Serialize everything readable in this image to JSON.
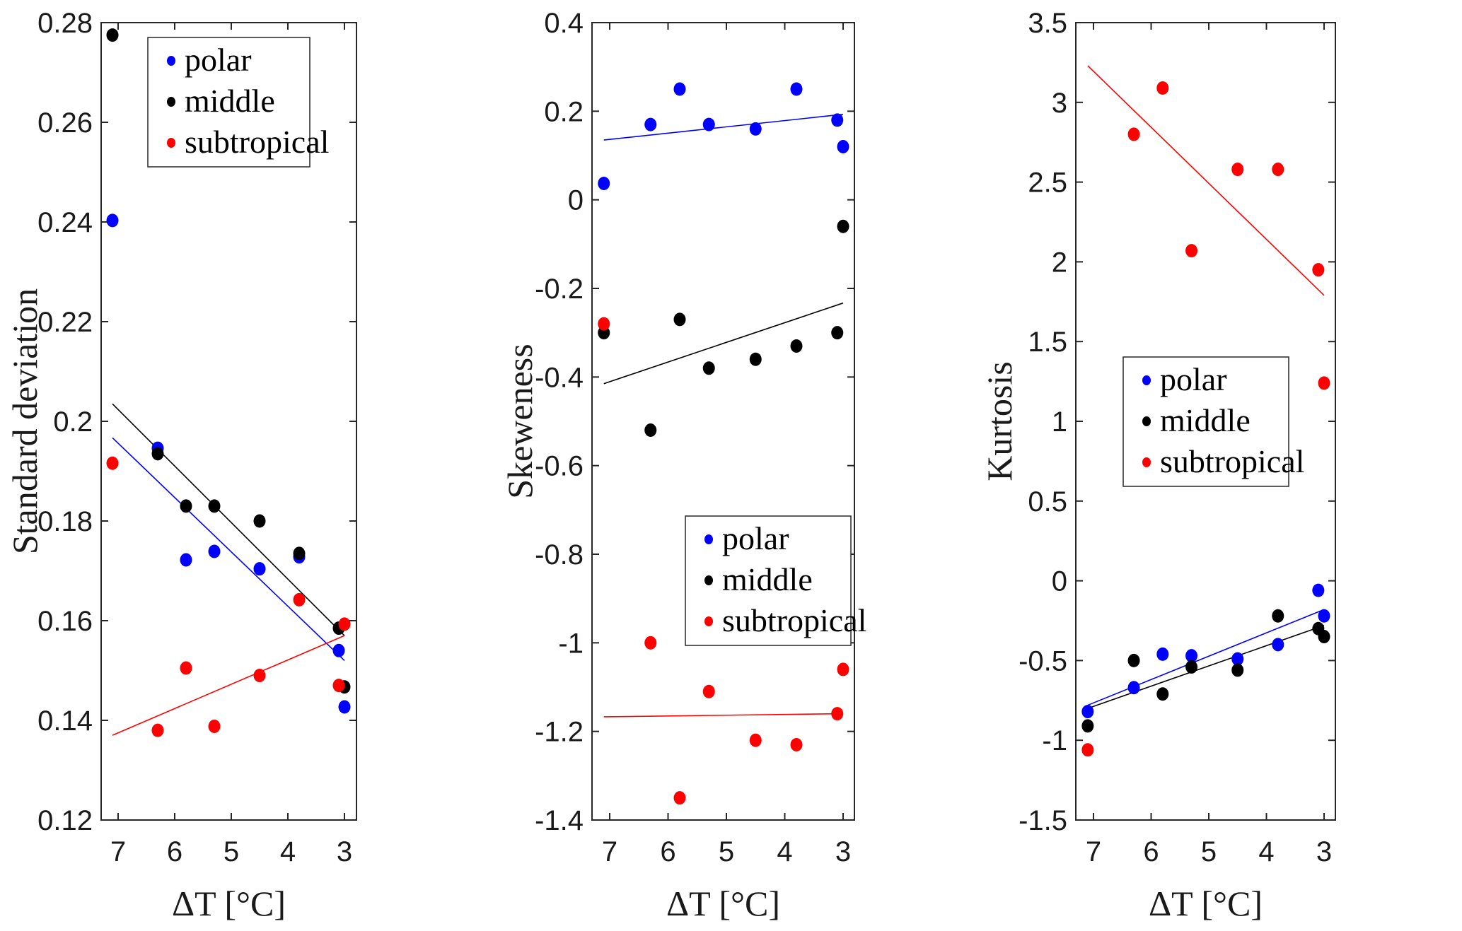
{
  "chart_data": [
    {
      "type": "scatter",
      "title": "",
      "xlabel": "ΔT [°C]",
      "ylabel": "Standard deviation",
      "xlim": [
        7.3,
        2.8
      ],
      "x_reversed": true,
      "ylim": [
        0.12,
        0.28
      ],
      "xticks": [
        7,
        6,
        5,
        4,
        3
      ],
      "xtick_labels": [
        "7",
        "6",
        "5",
        "4",
        "3"
      ],
      "yticks": [
        0.12,
        0.14,
        0.16,
        0.18,
        0.2,
        0.22,
        0.24,
        0.26,
        0.28
      ],
      "ytick_labels": [
        "0.12",
        "0.14",
        "0.16",
        "0.18",
        "0.2",
        "0.22",
        "0.24",
        "0.26",
        "0.28"
      ],
      "grid": false,
      "legend_position": "top-center",
      "x": [
        7.1,
        6.3,
        5.8,
        5.3,
        4.5,
        3.8,
        3.1,
        3.0
      ],
      "series": [
        {
          "name": "polar",
          "color": "#0000ff",
          "values": [
            0.2403,
            0.1946,
            0.1722,
            0.1739,
            0.1704,
            0.1728,
            0.154,
            0.1427
          ],
          "fit": [
            0.1967,
            0.152
          ]
        },
        {
          "name": "middle",
          "color": "#000000",
          "values": [
            0.2775,
            0.1935,
            0.183,
            0.183,
            0.18,
            0.1735,
            0.1585,
            0.1467
          ],
          "fit": [
            0.2035,
            0.157
          ]
        },
        {
          "name": "subtropical",
          "color": "#ff0000",
          "values": [
            0.1916,
            0.138,
            0.1505,
            0.1388,
            0.149,
            0.1642,
            0.147,
            0.1593
          ],
          "fit": [
            0.137,
            0.157
          ]
        }
      ],
      "fit_x": [
        7.1,
        3.0
      ]
    },
    {
      "type": "scatter",
      "title": "",
      "xlabel": "ΔT [°C]",
      "ylabel": "Skeweness",
      "xlim": [
        7.3,
        2.8
      ],
      "x_reversed": true,
      "ylim": [
        -1.4,
        0.4
      ],
      "xticks": [
        7,
        6,
        5,
        4,
        3
      ],
      "xtick_labels": [
        "7",
        "6",
        "5",
        "4",
        "3"
      ],
      "yticks": [
        -1.4,
        -1.2,
        -1,
        -0.8,
        -0.6,
        -0.4,
        -0.2,
        0,
        0.2,
        0.4
      ],
      "ytick_labels": [
        "-1.4",
        "-1.2",
        "-1",
        "-0.8",
        "-0.6",
        "-0.4",
        "-0.2",
        "0",
        "0.2",
        "0.4"
      ],
      "grid": false,
      "legend_position": "center-right",
      "x": [
        7.1,
        6.3,
        5.8,
        5.3,
        4.5,
        3.8,
        3.1,
        3.0
      ],
      "series": [
        {
          "name": "polar",
          "color": "#0000ff",
          "values": [
            0.037,
            0.17,
            0.25,
            0.17,
            0.16,
            0.25,
            0.18,
            0.12
          ],
          "fit": [
            0.135,
            0.193
          ]
        },
        {
          "name": "middle",
          "color": "#000000",
          "values": [
            -0.3,
            -0.52,
            -0.27,
            -0.38,
            -0.36,
            -0.33,
            -0.3,
            -0.06
          ],
          "fit": [
            -0.415,
            -0.233
          ]
        },
        {
          "name": "subtropical",
          "color": "#ff0000",
          "values": [
            -0.28,
            -1.0,
            -1.35,
            -1.11,
            -1.22,
            -1.23,
            -1.16,
            -1.06
          ],
          "fit": [
            -1.167,
            -1.16
          ]
        }
      ],
      "fit_x": [
        7.1,
        3.0
      ]
    },
    {
      "type": "scatter",
      "title": "",
      "xlabel": "ΔT [°C]",
      "ylabel": "Kurtosis",
      "xlim": [
        7.3,
        2.8
      ],
      "x_reversed": true,
      "ylim": [
        -1.5,
        3.5
      ],
      "xticks": [
        7,
        6,
        5,
        4,
        3
      ],
      "xtick_labels": [
        "7",
        "6",
        "5",
        "4",
        "3"
      ],
      "yticks": [
        -1.5,
        -1,
        -0.5,
        0,
        0.5,
        1,
        1.5,
        2,
        2.5,
        3,
        3.5
      ],
      "ytick_labels": [
        "-1.5",
        "-1",
        "-0.5",
        "0",
        "0.5",
        "1",
        "1.5",
        "2",
        "2.5",
        "3",
        "3.5"
      ],
      "grid": false,
      "legend_position": "center-left",
      "x": [
        7.1,
        6.3,
        5.8,
        5.3,
        4.5,
        3.8,
        3.1,
        3.0
      ],
      "series": [
        {
          "name": "polar",
          "color": "#0000ff",
          "values": [
            -0.82,
            -0.67,
            -0.46,
            -0.47,
            -0.49,
            -0.4,
            -0.06,
            -0.22
          ],
          "fit": [
            -0.78,
            -0.18
          ]
        },
        {
          "name": "middle",
          "color": "#000000",
          "values": [
            -0.91,
            -0.5,
            -0.71,
            -0.54,
            -0.56,
            -0.22,
            -0.3,
            -0.35
          ],
          "fit": [
            -0.8,
            -0.28
          ]
        },
        {
          "name": "subtropical",
          "color": "#ff0000",
          "values": [
            -1.06,
            2.8,
            3.09,
            2.07,
            2.58,
            2.58,
            1.95,
            1.24
          ],
          "fit": [
            3.23,
            1.79
          ]
        }
      ],
      "fit_x": [
        7.1,
        3.0
      ]
    }
  ]
}
